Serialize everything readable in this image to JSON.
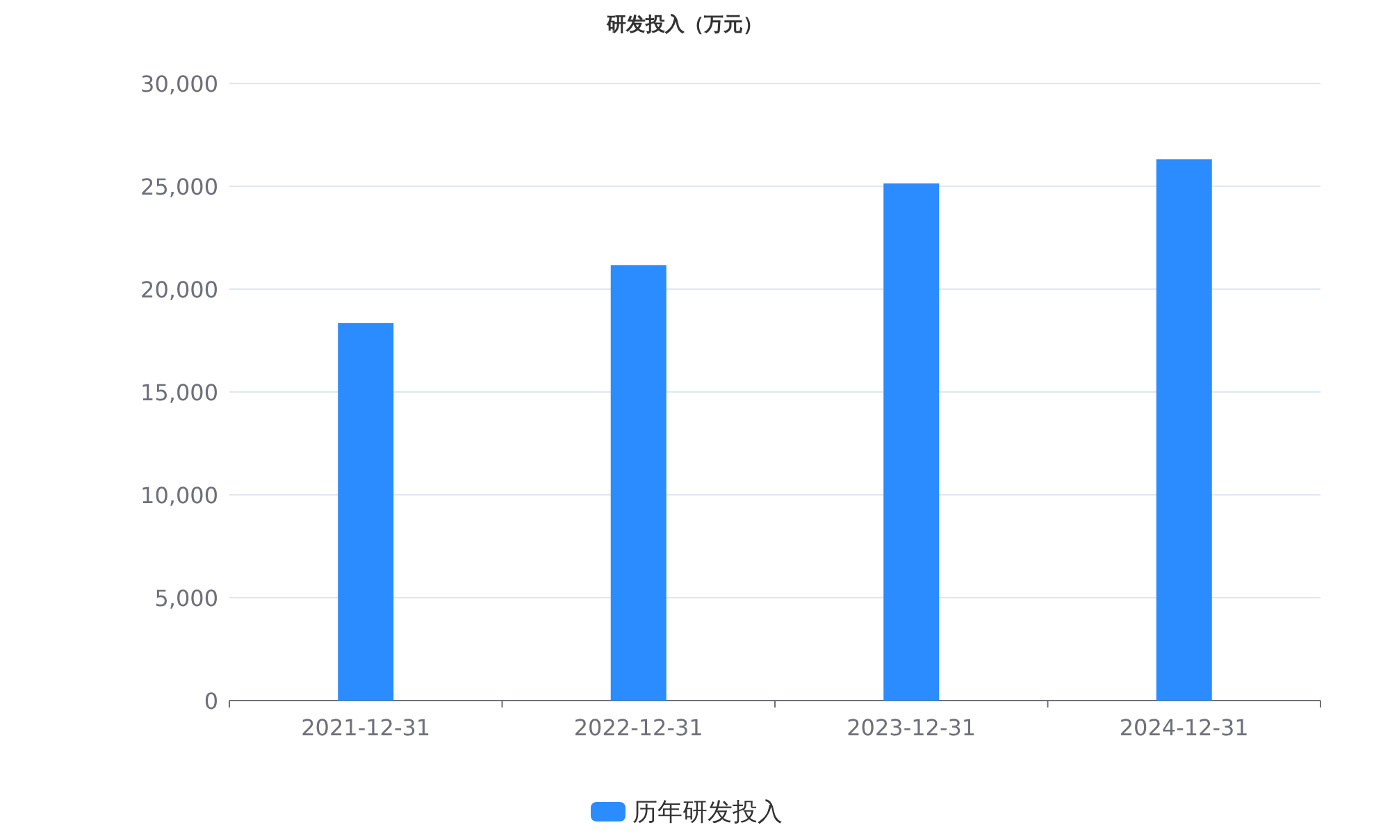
{
  "chart_data": {
    "type": "bar",
    "title": "研发投入（万元）",
    "categories": [
      "2021-12-31",
      "2022-12-31",
      "2023-12-31",
      "2024-12-31"
    ],
    "series": [
      {
        "name": "历年研发投入",
        "color": "#2b8cff",
        "values": [
          18350,
          21170,
          25140,
          26310
        ]
      }
    ],
    "ylim": [
      0,
      30000
    ],
    "yticks": [
      {
        "value": 0,
        "label": "0"
      },
      {
        "value": 5000,
        "label": "5,000"
      },
      {
        "value": 10000,
        "label": "10,000"
      },
      {
        "value": 15000,
        "label": "15,000"
      },
      {
        "value": 20000,
        "label": "20,000"
      },
      {
        "value": 25000,
        "label": "25,000"
      },
      {
        "value": 30000,
        "label": "30,000"
      }
    ],
    "grid": "y",
    "legend": "bottom"
  }
}
